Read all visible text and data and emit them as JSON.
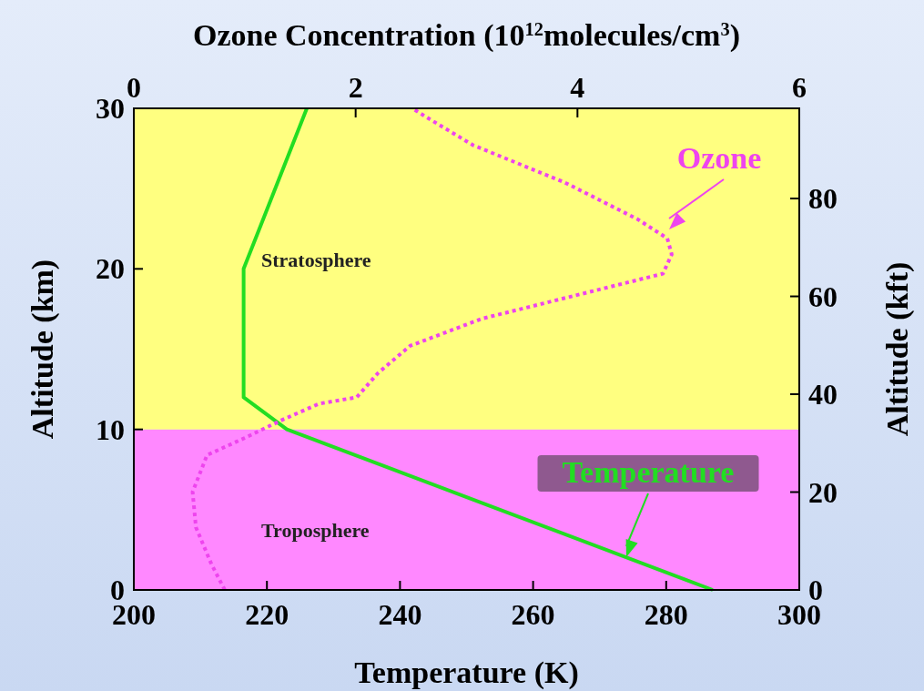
{
  "chart_data": {
    "type": "line",
    "xlabel": "Temperature (K)",
    "x2label": "Ozone Concentration (10$^{12}$molecules/cm$^{3}$)",
    "ylabel": "Altitude (km)",
    "y2label": "Altitude (kft)",
    "xlim": [
      200,
      300
    ],
    "xticks": [
      200,
      220,
      240,
      260,
      280,
      300
    ],
    "x2lim": [
      0,
      6
    ],
    "x2ticks": [
      0,
      2,
      4,
      6
    ],
    "ylim": [
      0,
      30
    ],
    "yticks": [
      0,
      10,
      20,
      30
    ],
    "y2lim": [
      0,
      98.43
    ],
    "y2ticks": [
      0,
      20,
      40,
      60,
      80
    ],
    "grid": false,
    "bands": [
      {
        "axis": "y",
        "from": 0,
        "to": 10,
        "label": "Troposphere",
        "color": "#ff88ff"
      },
      {
        "axis": "y",
        "from": 10,
        "to": 30,
        "label": "Stratosphere",
        "color": "#ffff80"
      }
    ],
    "series": [
      {
        "name": "Temperature",
        "color": "#22dd22",
        "line_style": "solid",
        "x": [
          287,
          223,
          216.5,
          216.5,
          226
        ],
        "values": [
          0,
          10,
          12,
          20,
          30
        ]
      },
      {
        "name": "Ozone",
        "color": "#ee44ee",
        "line_style": "dotted",
        "axis": "x2",
        "x": [
          0.82,
          0.7,
          0.56,
          0.53,
          0.66,
          1.01,
          1.34,
          1.67,
          2.01,
          2.2,
          2.49,
          3.14,
          4.13,
          4.77,
          4.85,
          4.81,
          4.54,
          3.88,
          3.06,
          2.65,
          2.51
        ],
        "values": [
          0,
          1.6,
          3.9,
          6.1,
          8.4,
          9.5,
          10.6,
          11.6,
          12,
          13.5,
          15.2,
          16.9,
          18.6,
          19.7,
          20.9,
          21.9,
          23.1,
          25.4,
          27.7,
          29.4,
          30
        ]
      }
    ]
  }
}
